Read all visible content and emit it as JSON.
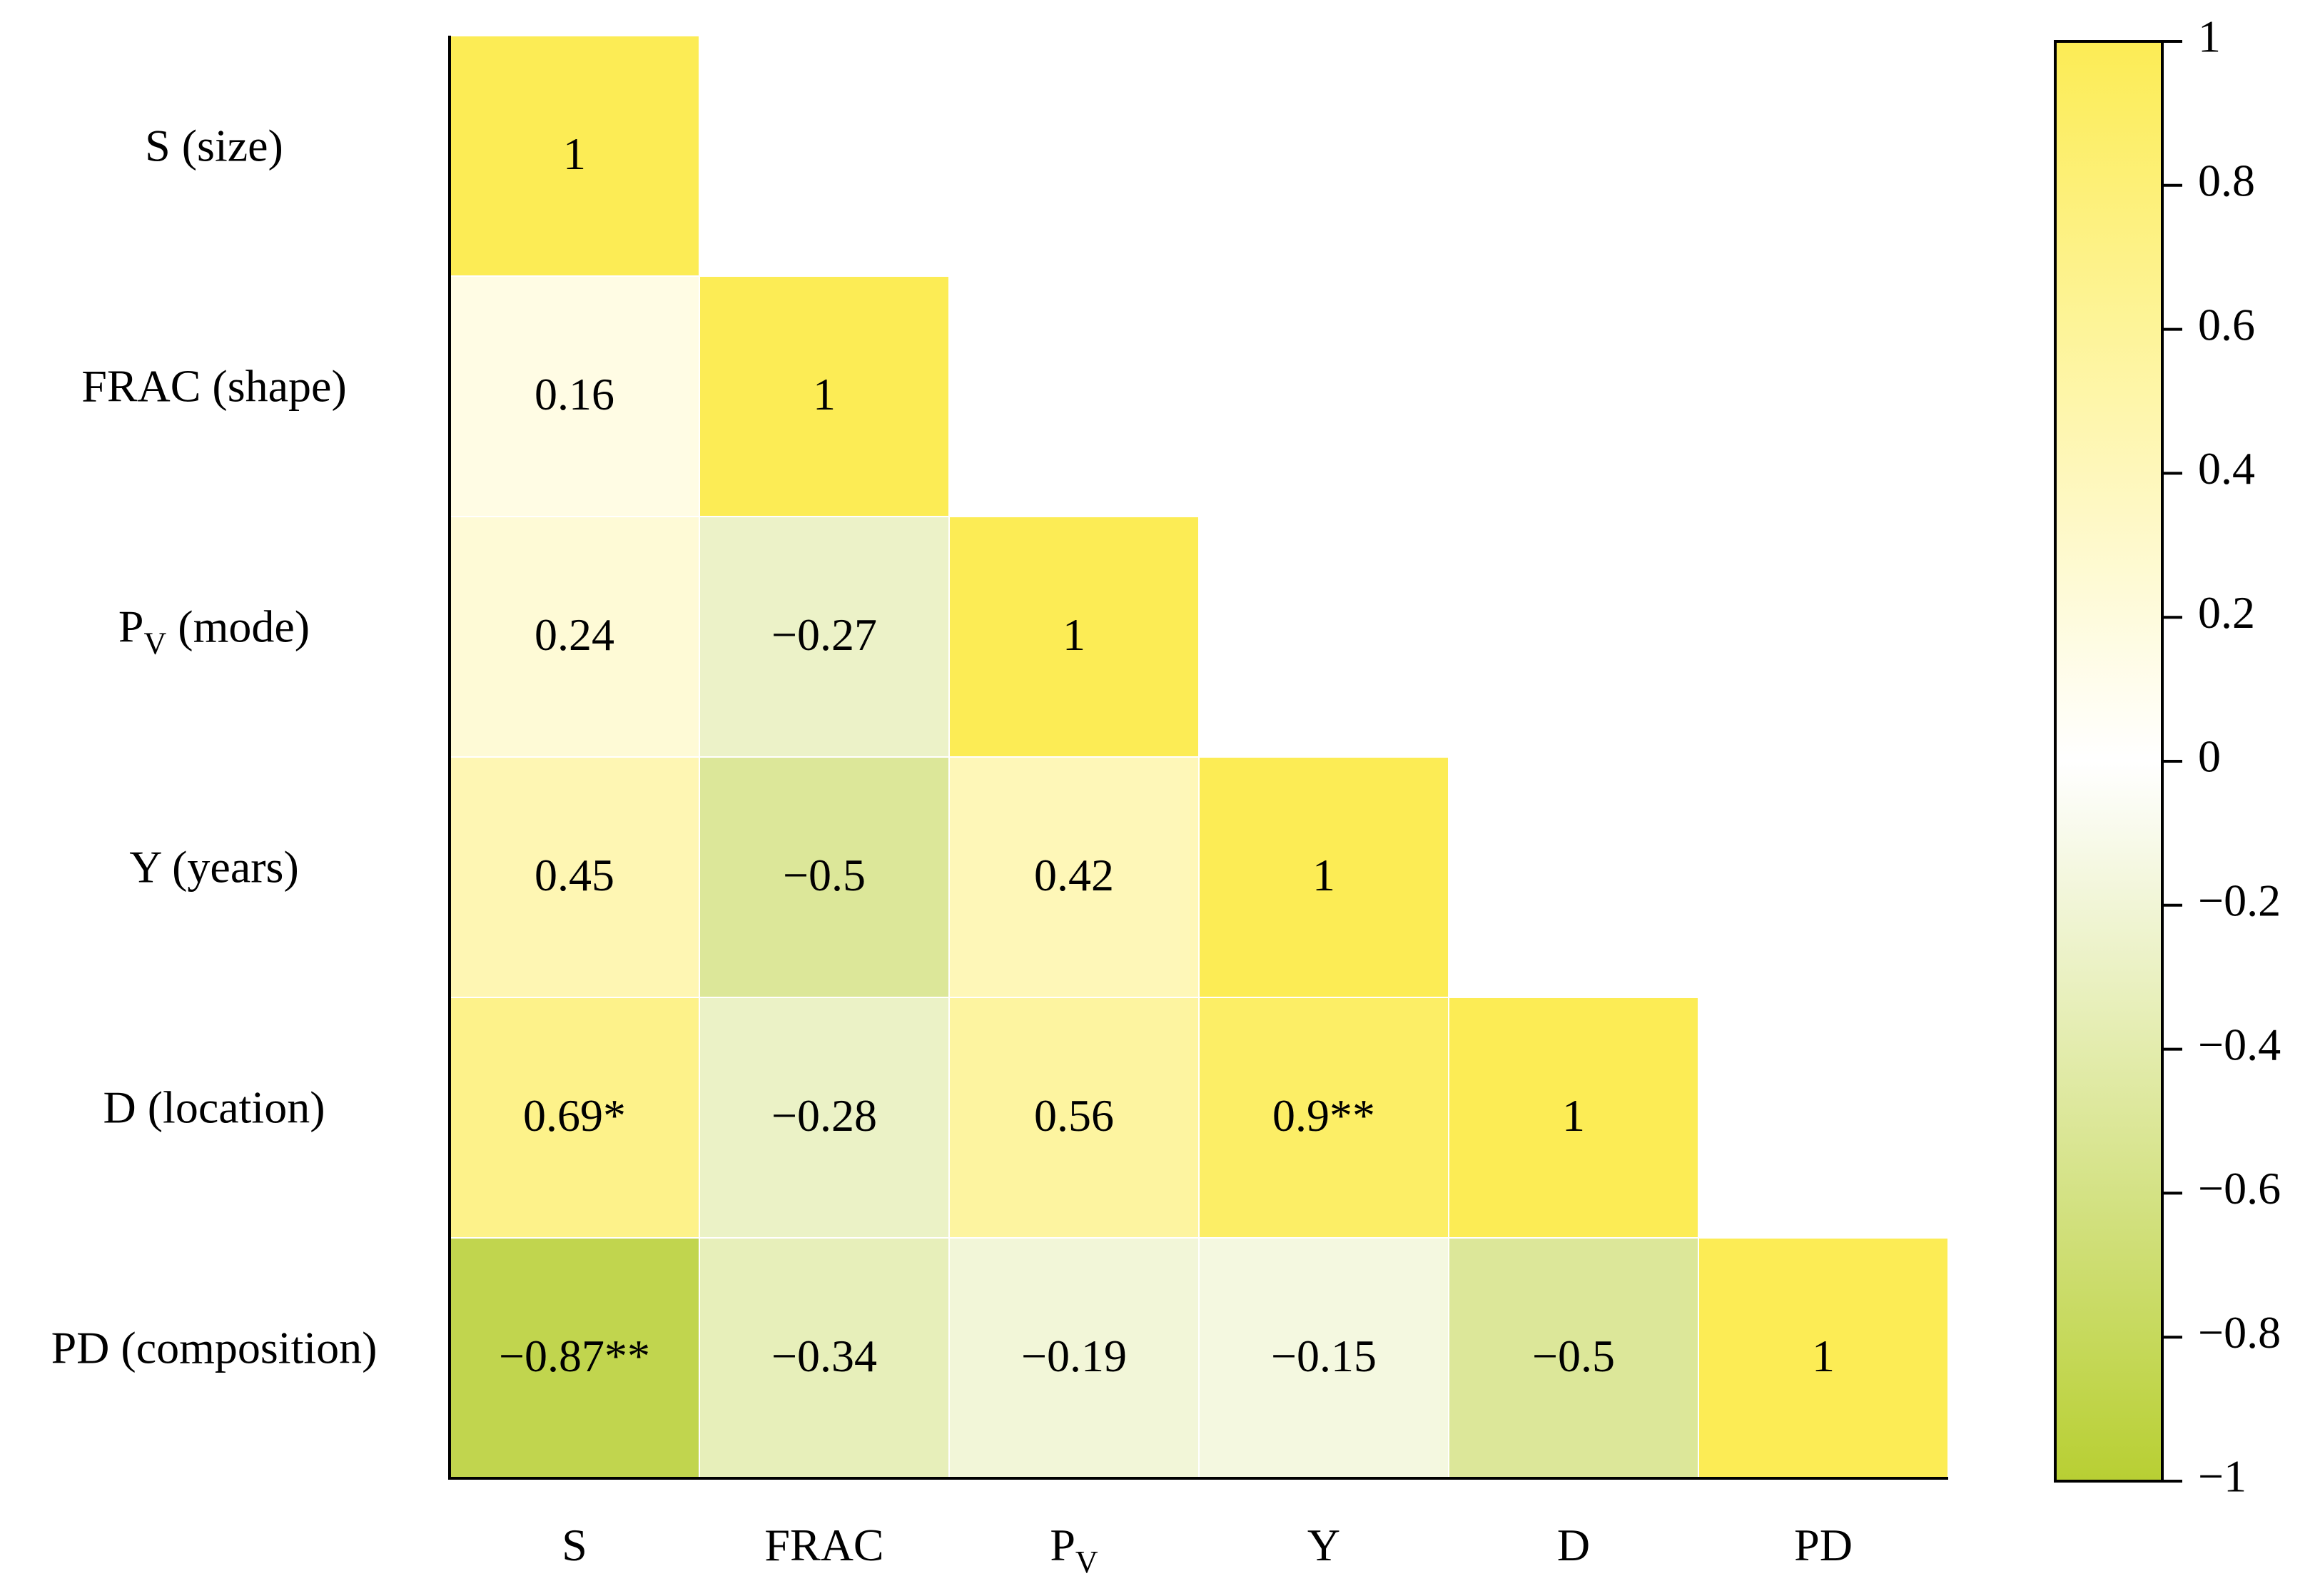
{
  "chart_data": {
    "type": "heatmap",
    "title": "",
    "xlabel": "",
    "ylabel": "",
    "rows": [
      {
        "name": "S",
        "sub": "",
        "desc": "(size)"
      },
      {
        "name": "FRAC",
        "sub": "",
        "desc": "(shape)"
      },
      {
        "name": "P",
        "sub": "V",
        "desc": "(mode)"
      },
      {
        "name": "Y",
        "sub": "",
        "desc": "(years)"
      },
      {
        "name": "D",
        "sub": "",
        "desc": "(location)"
      },
      {
        "name": "PD",
        "sub": "",
        "desc": "(composition)"
      }
    ],
    "columns": [
      {
        "name": "S",
        "sub": ""
      },
      {
        "name": "FRAC",
        "sub": ""
      },
      {
        "name": "P",
        "sub": "V"
      },
      {
        "name": "Y",
        "sub": ""
      },
      {
        "name": "D",
        "sub": ""
      },
      {
        "name": "PD",
        "sub": ""
      }
    ],
    "matrix": [
      [
        1
      ],
      [
        0.16,
        1
      ],
      [
        0.24,
        -0.27,
        1
      ],
      [
        0.45,
        -0.5,
        0.42,
        1
      ],
      [
        0.69,
        -0.28,
        0.56,
        0.9,
        1
      ],
      [
        -0.87,
        -0.34,
        -0.19,
        -0.15,
        -0.5,
        1
      ]
    ],
    "labels": [
      [
        "1"
      ],
      [
        "0.16",
        "1"
      ],
      [
        "0.24",
        "−0.27",
        "1"
      ],
      [
        "0.45",
        "−0.5",
        "0.42",
        "1"
      ],
      [
        "0.69*",
        "−0.28",
        "0.56",
        "0.9**",
        "1"
      ],
      [
        "−0.87**",
        "−0.34",
        "−0.19",
        "−0.15",
        "−0.5",
        "1"
      ]
    ],
    "colorbar": {
      "range": [
        -1,
        1
      ],
      "ticks": [
        1,
        0.8,
        0.6,
        0.4,
        0.2,
        0,
        -0.2,
        -0.4,
        -0.6,
        -0.8,
        -1
      ],
      "tick_labels": [
        "1",
        "0.8",
        "0.6",
        "0.4",
        "0.2",
        "0",
        "−0.2",
        "−0.4",
        "−0.6",
        "−0.8",
        "−1"
      ]
    },
    "colors": {
      "positive": "#fcec55",
      "zero": "#ffffff",
      "negative": "#b8cf33",
      "axis": "#000000"
    }
  }
}
